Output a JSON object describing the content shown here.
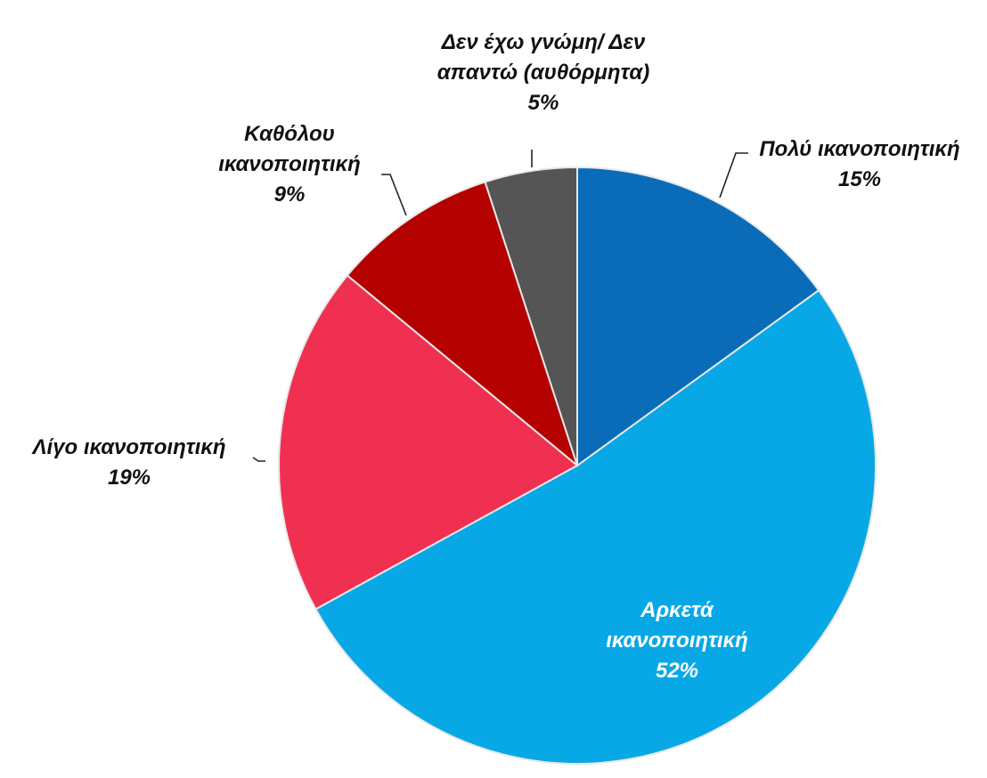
{
  "chart_data": {
    "type": "pie",
    "categories": [
      "Πολύ ικανοποιητική",
      "Αρκετά ικανοποιητική",
      "Λίγο ικανοποιητική",
      "Καθόλου ικανοποιητική",
      "Δεν έχω γνώμη/ Δεν απαντώ (αυθόρμητα)"
    ],
    "values": [
      15,
      52,
      19,
      9,
      5
    ],
    "value_labels": [
      "15%",
      "52%",
      "19%",
      "9%",
      "5%"
    ],
    "colors": [
      "#0a6cb8",
      "#08a8e6",
      "#f03050",
      "#b50000",
      "#555555"
    ]
  }
}
